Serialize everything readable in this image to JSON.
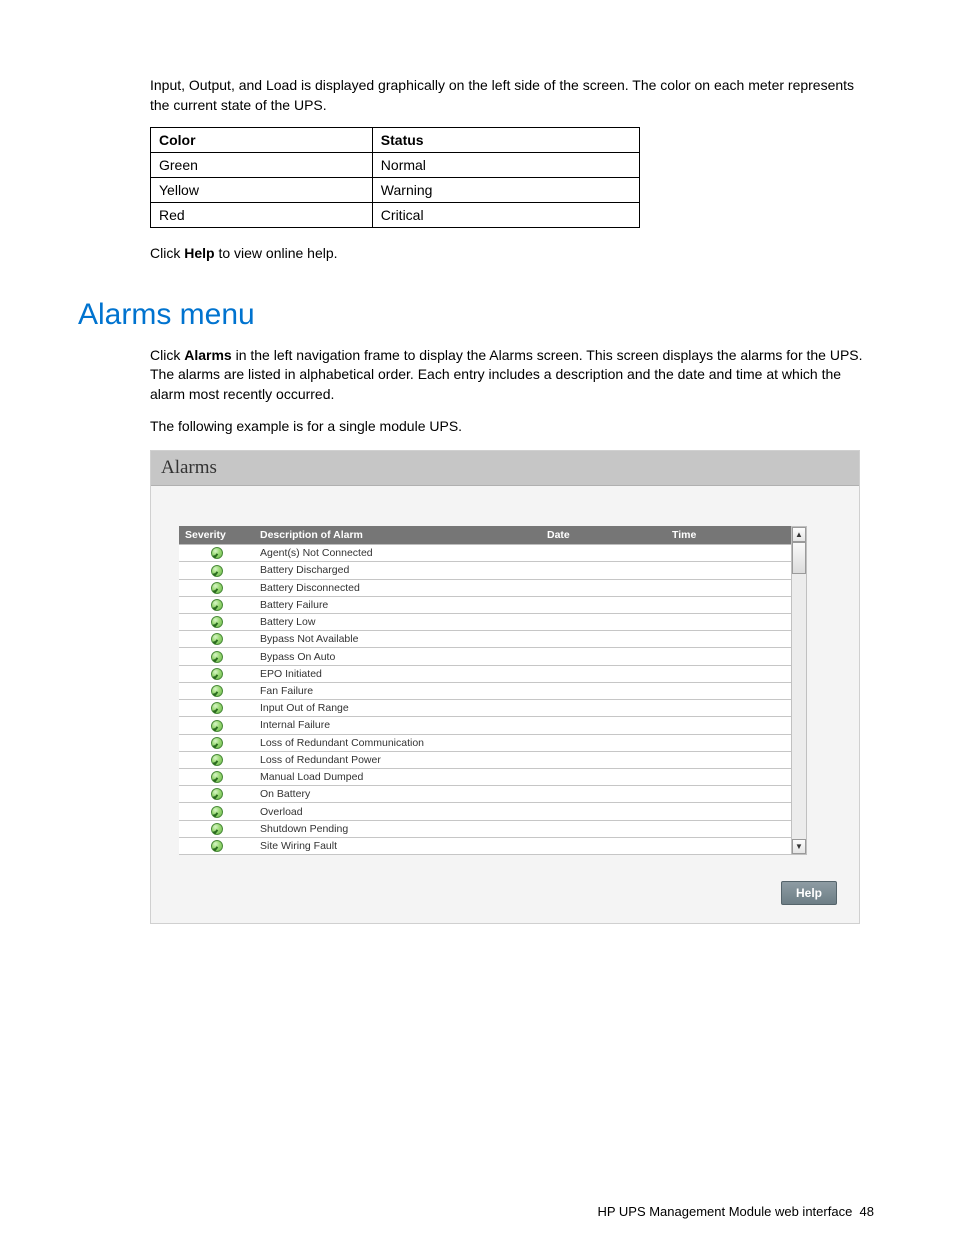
{
  "intro_paragraph": "Input, Output, and Load is displayed graphically on the left side of the screen. The color on each meter represents the current state of the UPS.",
  "color_table": {
    "columns": [
      "Color",
      "Status"
    ],
    "rows": [
      [
        "Green",
        "Normal"
      ],
      [
        "Yellow",
        "Warning"
      ],
      [
        "Red",
        "Critical"
      ]
    ]
  },
  "click_help": {
    "pre": "Click ",
    "bold": "Help",
    "post": " to view online help."
  },
  "section_heading": "Alarms menu",
  "alarms_para1": {
    "pre": "Click ",
    "bold": "Alarms",
    "post": " in the left navigation frame to display the Alarms screen. This screen displays the alarms for the UPS. The alarms are listed in alphabetical order. Each entry includes a description and the date and time at which the alarm most recently occurred."
  },
  "alarms_para2": "The following example is for a single module UPS.",
  "alarms_panel": {
    "title": "Alarms",
    "columns": {
      "severity": "Severity",
      "desc": "Description of Alarm",
      "date": "Date",
      "time": "Time"
    },
    "rows": [
      {
        "desc": "Agent(s) Not Connected"
      },
      {
        "desc": "Battery Discharged"
      },
      {
        "desc": "Battery Disconnected"
      },
      {
        "desc": "Battery Failure"
      },
      {
        "desc": "Battery Low"
      },
      {
        "desc": "Bypass Not Available"
      },
      {
        "desc": "Bypass On Auto"
      },
      {
        "desc": "EPO Initiated"
      },
      {
        "desc": "Fan Failure"
      },
      {
        "desc": "Input Out of Range"
      },
      {
        "desc": "Internal Failure"
      },
      {
        "desc": "Loss of Redundant Communication"
      },
      {
        "desc": "Loss of Redundant Power"
      },
      {
        "desc": "Manual Load Dumped"
      },
      {
        "desc": "On Battery"
      },
      {
        "desc": "Overload"
      },
      {
        "desc": "Shutdown Pending"
      },
      {
        "desc": "Site Wiring Fault"
      }
    ],
    "help_label": "Help"
  },
  "footer": {
    "text": "HP UPS Management Module web interface",
    "page": "48"
  },
  "colors": {
    "heading": "#0073cf",
    "table_header_bg": "#767676",
    "panel_title_bg": "#c6c6c6",
    "panel_bg": "#f4f4f4",
    "row_border": "#c6c6c6",
    "severity_ok": "#6bb94a",
    "help_btn_bg": "#7a8a91"
  }
}
